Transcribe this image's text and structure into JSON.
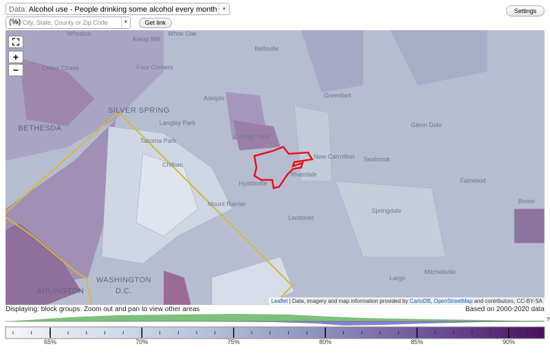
{
  "toolbar": {
    "data_label": "Data:",
    "data_select": "Alcohol use - People drinking some alcohol every month (%)",
    "settings": "Settings",
    "search_placeholder": "Find City, State, County or Zip Code",
    "get_link": "Get link"
  },
  "map": {
    "zoom_in": "+",
    "zoom_out": "−",
    "place_labels": [
      "Wheaton",
      "Kemp Mill",
      "White Oak",
      "Beltsville",
      "Four Corners",
      "Chevy Chase",
      "SILVER SPRING",
      "BETHESDA",
      "Adelphi",
      "Greenbelt",
      "Langley Park",
      "College Park",
      "Takoma Park",
      "Glenn Dale",
      "New Carrollton",
      "Seabrook",
      "Chillum",
      "Hyattsville",
      "Riverdale",
      "Fairwood",
      "Bowie",
      "Mount Rainier",
      "Landover",
      "Springdale",
      "WASHINGTON",
      "D.C.",
      "ARLINGTON",
      "Largo",
      "Mitchellville"
    ],
    "attribution": {
      "leaflet": "Leaflet",
      "provided": "| Data, imagery and map information provided by",
      "carto": "CartoDB",
      "osm": "OpenStreetMap",
      "rest": "and contributors, CC-BY-SA"
    }
  },
  "status": {
    "displaying": "Displaying: block groups. Zoom out and pan to view other areas",
    "based_on": "Based on 2000-2020 data"
  },
  "legend": {
    "ticks": [
      "65%",
      "70%",
      "75%",
      "80%",
      "85%",
      "90%"
    ],
    "question": "?"
  }
}
